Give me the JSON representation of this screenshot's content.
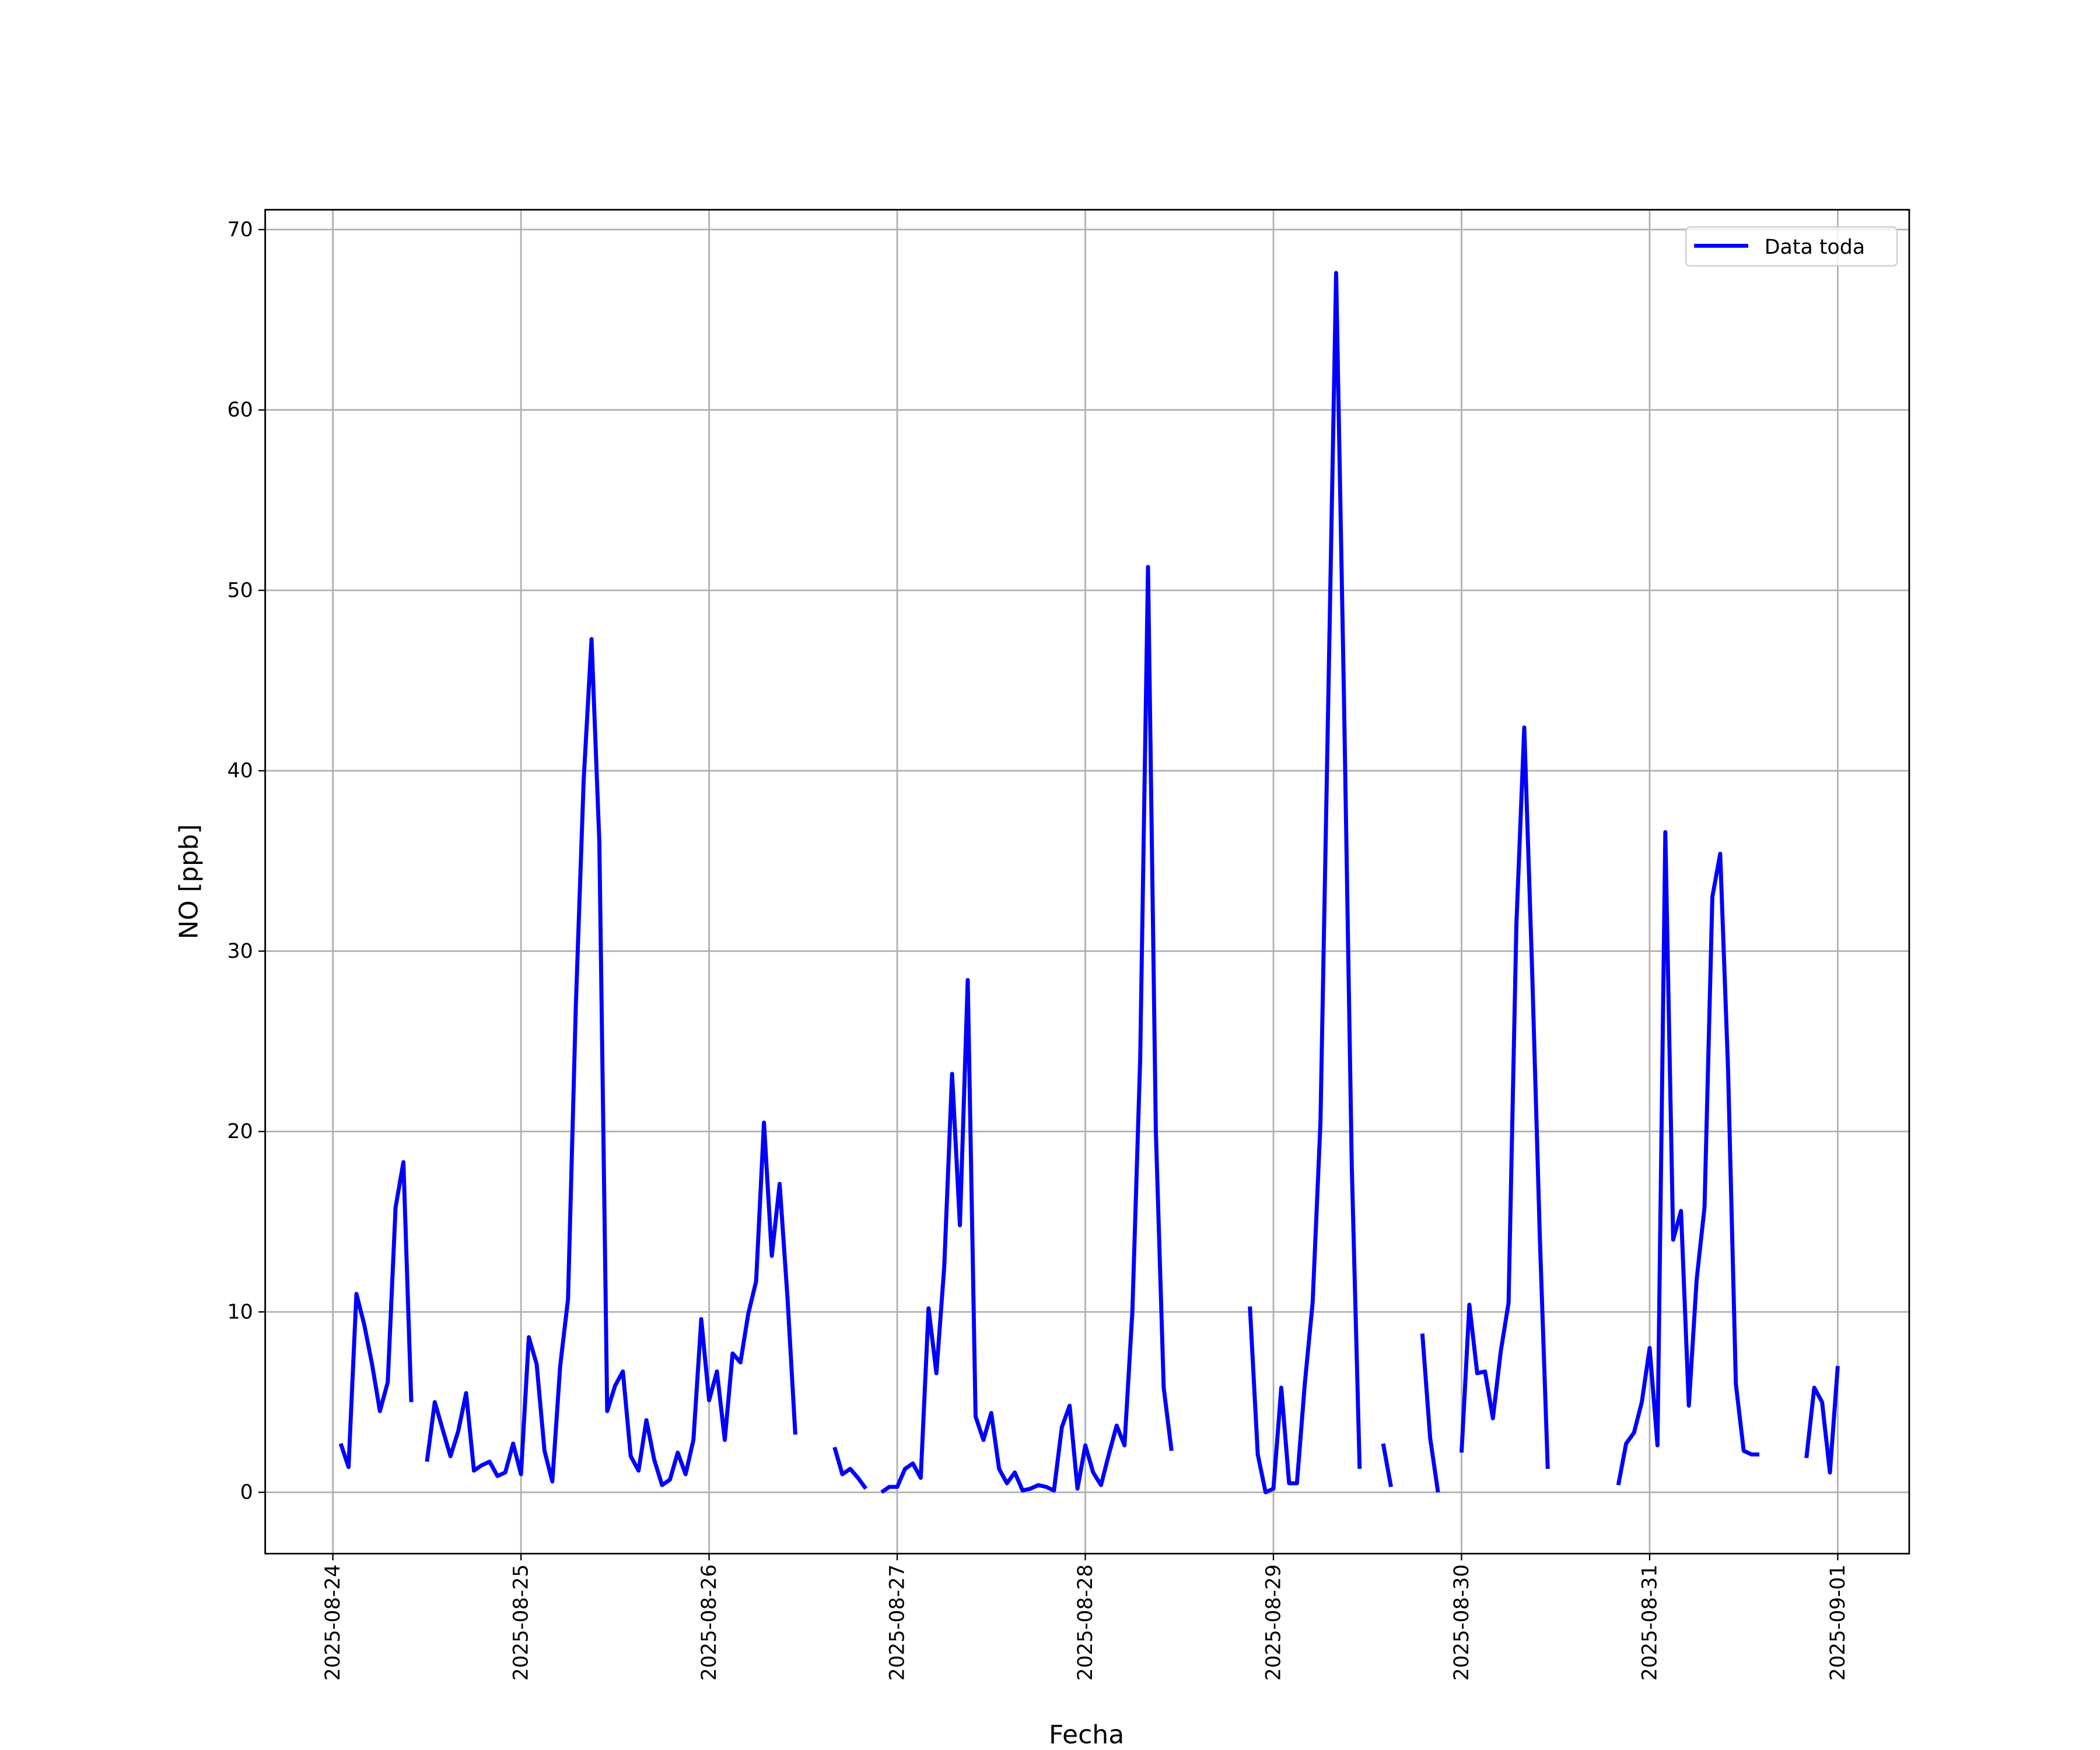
{
  "chart_data": {
    "type": "line",
    "xlabel": "Fecha",
    "ylabel": "NO [ppb]",
    "x": [
      "2025-08-24 01:00",
      "2025-08-24 02:00",
      "2025-08-24 03:00",
      "2025-08-24 04:00",
      "2025-08-24 05:00",
      "2025-08-24 06:00",
      "2025-08-24 07:00",
      "2025-08-24 08:00",
      "2025-08-24 09:00",
      "2025-08-24 10:00",
      "2025-08-24 11:00",
      "2025-08-24 12:00",
      "2025-08-24 13:00",
      "2025-08-24 14:00",
      "2025-08-24 15:00",
      "2025-08-24 16:00",
      "2025-08-24 17:00",
      "2025-08-24 18:00",
      "2025-08-24 19:00",
      "2025-08-24 20:00",
      "2025-08-24 21:00",
      "2025-08-24 22:00",
      "2025-08-24 23:00",
      "2025-08-25 00:00",
      "2025-08-25 01:00",
      "2025-08-25 02:00",
      "2025-08-25 03:00",
      "2025-08-25 04:00",
      "2025-08-25 05:00",
      "2025-08-25 06:00",
      "2025-08-25 07:00",
      "2025-08-25 08:00",
      "2025-08-25 09:00",
      "2025-08-25 10:00",
      "2025-08-25 11:00",
      "2025-08-25 12:00",
      "2025-08-25 13:00",
      "2025-08-25 14:00",
      "2025-08-25 15:00",
      "2025-08-25 16:00",
      "2025-08-25 17:00",
      "2025-08-25 18:00",
      "2025-08-25 19:00",
      "2025-08-25 20:00",
      "2025-08-25 21:00",
      "2025-08-25 22:00",
      "2025-08-25 23:00",
      "2025-08-26 00:00",
      "2025-08-26 01:00",
      "2025-08-26 02:00",
      "2025-08-26 03:00",
      "2025-08-26 04:00",
      "2025-08-26 05:00",
      "2025-08-26 06:00",
      "2025-08-26 07:00",
      "2025-08-26 08:00",
      "2025-08-26 09:00",
      "2025-08-26 10:00",
      "2025-08-26 11:00",
      "2025-08-26 12:00",
      "2025-08-26 13:00",
      "2025-08-26 14:00",
      "2025-08-26 15:00",
      "2025-08-26 16:00",
      "2025-08-26 17:00",
      "2025-08-26 18:00",
      "2025-08-26 19:00",
      "2025-08-26 20:00",
      "2025-08-26 21:00",
      "2025-08-26 22:00",
      "2025-08-26 23:00",
      "2025-08-27 00:00",
      "2025-08-27 01:00",
      "2025-08-27 02:00",
      "2025-08-27 03:00",
      "2025-08-27 04:00",
      "2025-08-27 05:00",
      "2025-08-27 06:00",
      "2025-08-27 07:00",
      "2025-08-27 08:00",
      "2025-08-27 09:00",
      "2025-08-27 10:00",
      "2025-08-27 11:00",
      "2025-08-27 12:00",
      "2025-08-27 13:00",
      "2025-08-27 14:00",
      "2025-08-27 15:00",
      "2025-08-27 16:00",
      "2025-08-27 17:00",
      "2025-08-27 18:00",
      "2025-08-27 19:00",
      "2025-08-27 20:00",
      "2025-08-27 21:00",
      "2025-08-27 22:00",
      "2025-08-27 23:00",
      "2025-08-28 00:00",
      "2025-08-28 01:00",
      "2025-08-28 02:00",
      "2025-08-28 03:00",
      "2025-08-28 04:00",
      "2025-08-28 05:00",
      "2025-08-28 06:00",
      "2025-08-28 07:00",
      "2025-08-28 08:00",
      "2025-08-28 09:00",
      "2025-08-28 10:00",
      "2025-08-28 11:00",
      "2025-08-28 12:00",
      "2025-08-28 13:00",
      "2025-08-28 14:00",
      "2025-08-28 15:00",
      "2025-08-28 16:00",
      "2025-08-28 17:00",
      "2025-08-28 18:00",
      "2025-08-28 19:00",
      "2025-08-28 20:00",
      "2025-08-28 21:00",
      "2025-08-28 22:00",
      "2025-08-28 23:00",
      "2025-08-29 00:00",
      "2025-08-29 01:00",
      "2025-08-29 02:00",
      "2025-08-29 03:00",
      "2025-08-29 04:00",
      "2025-08-29 05:00",
      "2025-08-29 06:00",
      "2025-08-29 07:00",
      "2025-08-29 08:00",
      "2025-08-29 09:00",
      "2025-08-29 10:00",
      "2025-08-29 11:00",
      "2025-08-29 12:00",
      "2025-08-29 13:00",
      "2025-08-29 14:00",
      "2025-08-29 15:00",
      "2025-08-29 16:00",
      "2025-08-29 17:00",
      "2025-08-29 18:00",
      "2025-08-29 19:00",
      "2025-08-29 20:00",
      "2025-08-29 21:00",
      "2025-08-29 22:00",
      "2025-08-29 23:00",
      "2025-08-30 00:00",
      "2025-08-30 01:00",
      "2025-08-30 02:00",
      "2025-08-30 03:00",
      "2025-08-30 04:00",
      "2025-08-30 05:00",
      "2025-08-30 06:00",
      "2025-08-30 07:00",
      "2025-08-30 08:00",
      "2025-08-30 09:00",
      "2025-08-30 10:00",
      "2025-08-30 11:00",
      "2025-08-30 12:00",
      "2025-08-30 13:00",
      "2025-08-30 14:00",
      "2025-08-30 15:00",
      "2025-08-30 16:00",
      "2025-08-30 17:00",
      "2025-08-30 18:00",
      "2025-08-30 19:00",
      "2025-08-30 20:00",
      "2025-08-30 21:00",
      "2025-08-30 22:00",
      "2025-08-30 23:00",
      "2025-08-31 00:00",
      "2025-08-31 01:00",
      "2025-08-31 02:00",
      "2025-08-31 03:00",
      "2025-08-31 04:00",
      "2025-08-31 05:00",
      "2025-08-31 06:00",
      "2025-08-31 07:00",
      "2025-08-31 08:00",
      "2025-08-31 09:00",
      "2025-08-31 10:00",
      "2025-08-31 11:00",
      "2025-08-31 12:00",
      "2025-08-31 13:00",
      "2025-08-31 14:00",
      "2025-08-31 15:00",
      "2025-08-31 16:00",
      "2025-08-31 17:00",
      "2025-08-31 18:00",
      "2025-08-31 19:00",
      "2025-08-31 20:00",
      "2025-08-31 21:00",
      "2025-08-31 22:00",
      "2025-08-31 23:00",
      "2025-09-01 00:00"
    ],
    "series": [
      {
        "name": "Data toda",
        "color": "#0000ff",
        "values": [
          2.7,
          1.4,
          11.0,
          9.3,
          7.1,
          4.5,
          6.1,
          15.8,
          18.3,
          5.0,
          null,
          1.7,
          5.0,
          3.5,
          2.0,
          3.4,
          5.5,
          1.2,
          1.5,
          1.7,
          0.9,
          1.1,
          2.7,
          1.0,
          8.6,
          7.1,
          2.3,
          0.6,
          7.0,
          10.7,
          27.0,
          39.5,
          47.3,
          36.0,
          4.5,
          5.9,
          6.7,
          2.0,
          1.2,
          4.0,
          1.8,
          0.4,
          0.7,
          2.2,
          1.0,
          2.9,
          9.6,
          5.1,
          6.7,
          2.9,
          7.7,
          7.2,
          9.9,
          11.7,
          20.5,
          13.1,
          17.1,
          10.8,
          3.2,
          null,
          null,
          null,
          null,
          2.5,
          1.0,
          1.3,
          0.8,
          0.2,
          null,
          0.0,
          0.3,
          0.3,
          1.3,
          1.6,
          0.8,
          10.2,
          6.6,
          12.5,
          23.2,
          14.8,
          28.4,
          4.2,
          2.9,
          4.4,
          1.3,
          0.5,
          1.1,
          0.1,
          0.2,
          0.4,
          0.3,
          0.1,
          3.6,
          4.8,
          0.2,
          2.6,
          1.1,
          0.4,
          2.1,
          3.7,
          2.6,
          10.0,
          24.0,
          51.3,
          20.0,
          5.8,
          2.3,
          null,
          null,
          null,
          null,
          null,
          null,
          null,
          null,
          null,
          10.3,
          2.1,
          0.0,
          0.2,
          5.8,
          0.5,
          0.5,
          6.0,
          10.5,
          20.5,
          44.0,
          67.6,
          44.0,
          18.0,
          1.3,
          null,
          null,
          2.7,
          0.3,
          null,
          null,
          null,
          8.8,
          3.0,
          0.0,
          null,
          null,
          2.2,
          10.4,
          6.6,
          6.7,
          4.1,
          7.8,
          10.5,
          31.5,
          42.4,
          29.0,
          14.0,
          1.3,
          null,
          null,
          null,
          null,
          null,
          null,
          null,
          null,
          0.4,
          2.7,
          3.3,
          5.0,
          8.0,
          2.6,
          36.6,
          14.0,
          15.6,
          4.8,
          11.8,
          15.8,
          33.0,
          35.4,
          23.5,
          6.0,
          2.3,
          2.1,
          2.1,
          null,
          null,
          null,
          null,
          null,
          1.9,
          5.8,
          5.0,
          1.1,
          7.0
        ]
      }
    ],
    "xlim": [
      "2025-08-23 15:22",
      "2025-09-01 09:07"
    ],
    "xticks": [
      "2025-08-24",
      "2025-08-25",
      "2025-08-26",
      "2025-08-27",
      "2025-08-28",
      "2025-08-29",
      "2025-08-30",
      "2025-08-31",
      "2025-09-01"
    ],
    "ylim": [
      -3.4,
      71.1
    ],
    "yticks": [
      0,
      10,
      20,
      30,
      40,
      50,
      60,
      70
    ],
    "grid": true,
    "legend": "upper right"
  }
}
